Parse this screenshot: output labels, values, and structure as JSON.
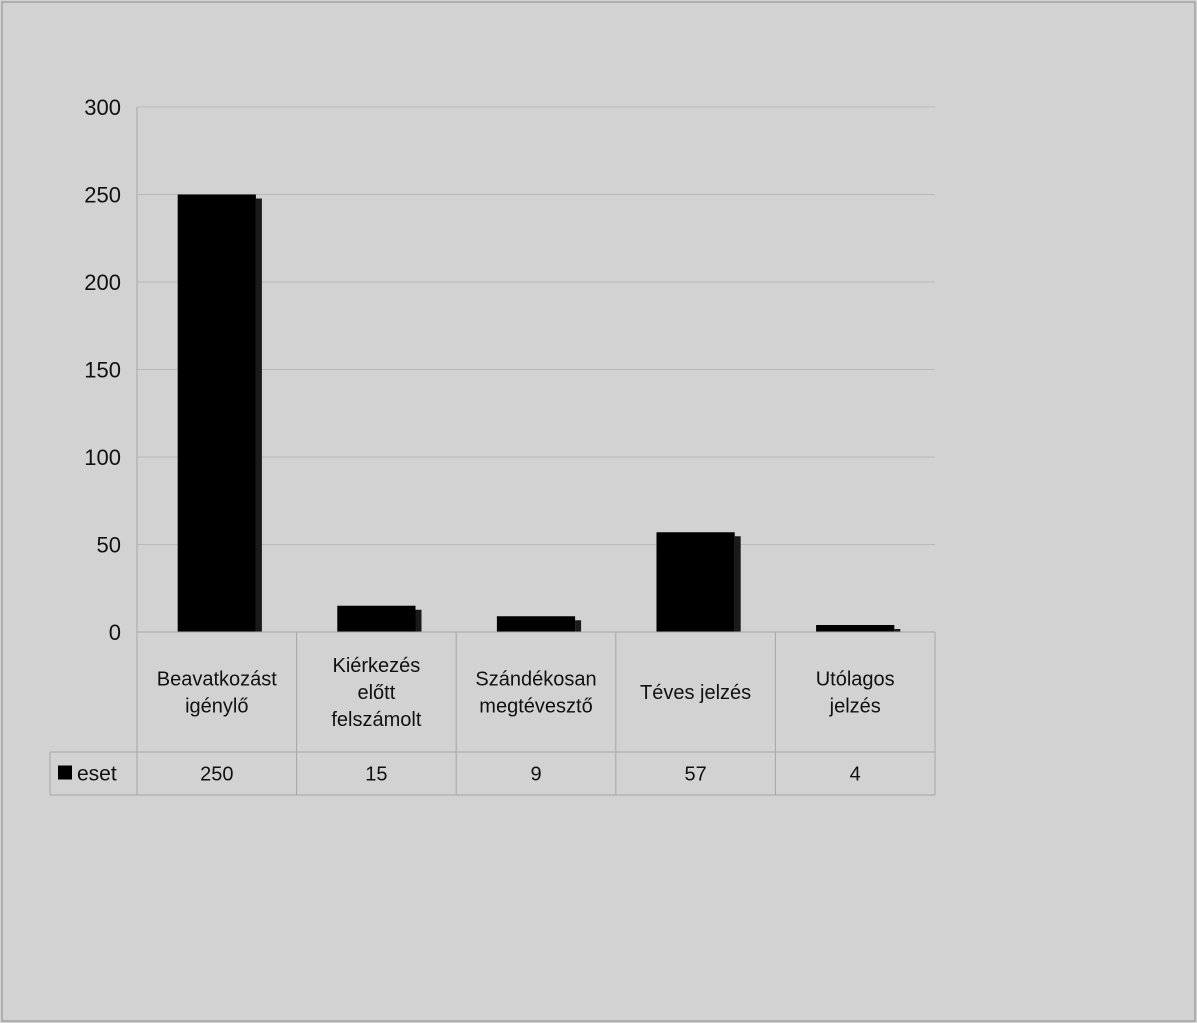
{
  "chart_data": {
    "type": "bar",
    "title": "",
    "xlabel": "",
    "ylabel": "",
    "ylim": [
      0,
      300
    ],
    "yticks": [
      0,
      50,
      100,
      150,
      200,
      250,
      300
    ],
    "grid": true,
    "data_table": true,
    "categories": [
      [
        "Beavatkozást",
        "igénylő"
      ],
      [
        "Kiérkezés",
        "előtt",
        "felszámolt"
      ],
      [
        "Szándékosan",
        "megtévesztő"
      ],
      [
        "Téves jelzés"
      ],
      [
        "Utólagos",
        "jelzés"
      ]
    ],
    "series": [
      {
        "name": "eset",
        "values": [
          250,
          15,
          9,
          57,
          4
        ],
        "color": "#000000"
      }
    ]
  }
}
